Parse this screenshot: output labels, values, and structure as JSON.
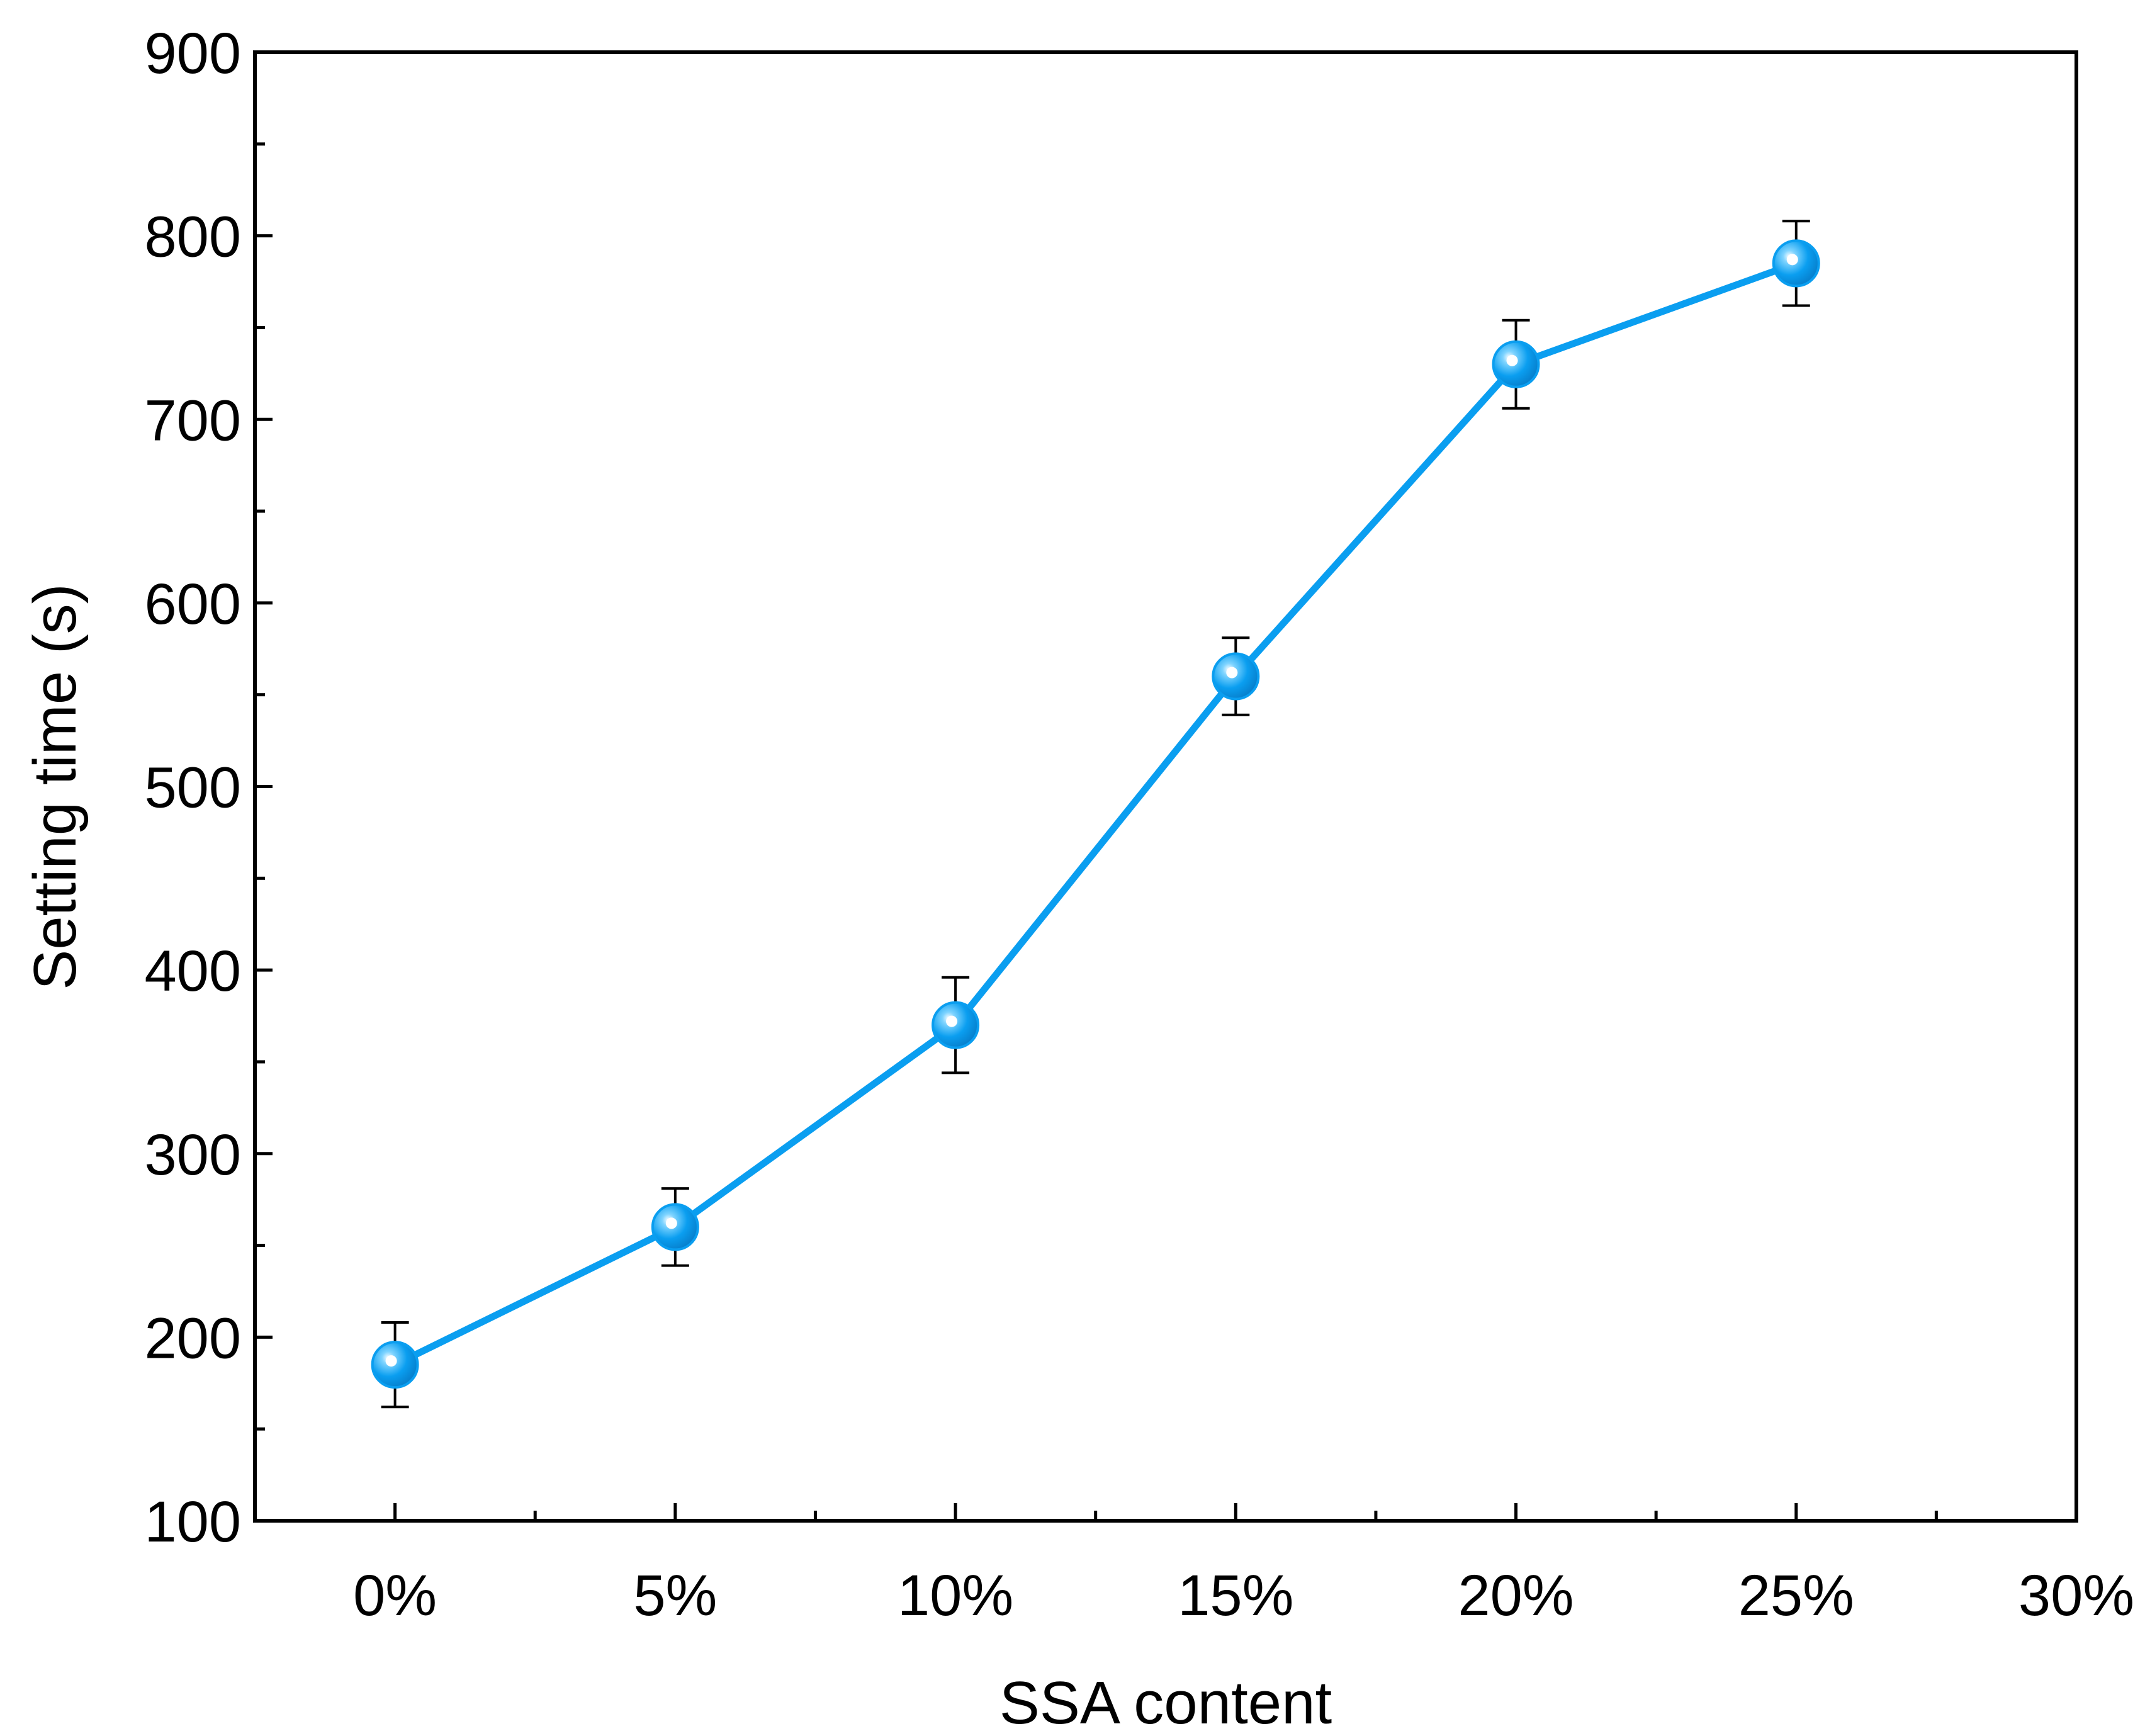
{
  "chart_data": {
    "type": "line",
    "xlabel": "SSA content",
    "ylabel": "Setting time (s)",
    "x_tick_labels": [
      "0%",
      "5%",
      "10%",
      "15%",
      "20%",
      "25%",
      "30%"
    ],
    "x_tick_values": [
      0,
      5,
      10,
      15,
      20,
      25,
      30
    ],
    "y_ticks": [
      100,
      200,
      300,
      400,
      500,
      600,
      700,
      800,
      900
    ],
    "xlim": [
      -2.5,
      30
    ],
    "ylim": [
      100,
      900
    ],
    "grid": false,
    "legend": "none",
    "series": [
      {
        "x": [
          0,
          5,
          10,
          15,
          20,
          25
        ],
        "y": [
          185,
          260,
          370,
          560,
          730,
          785
        ],
        "error": [
          23,
          21,
          26,
          21,
          24,
          23
        ],
        "color": "#0a9ef0",
        "marker": "circle"
      }
    ]
  }
}
